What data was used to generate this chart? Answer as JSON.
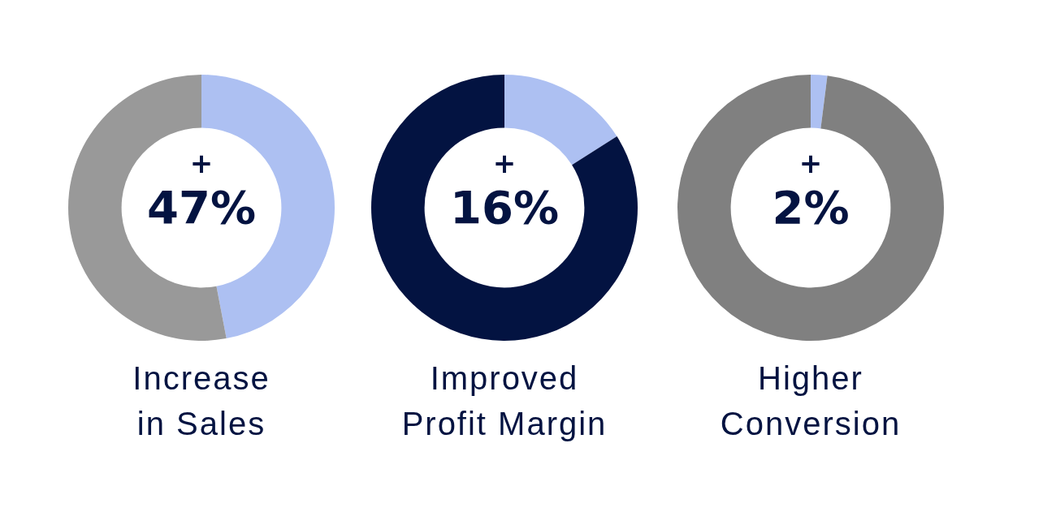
{
  "chart_data": [
    {
      "type": "donut",
      "title": "Increase\nin Sales",
      "categories": [
        null,
        null
      ],
      "values": [
        47,
        53
      ],
      "colors": [
        "#adc0f2",
        "#999999"
      ],
      "value_labels": [
        "47%",
        null
      ],
      "annotations": [
        "+"
      ]
    },
    {
      "type": "donut",
      "title": "Improved\nProfit Margin",
      "categories": [
        null,
        null
      ],
      "values": [
        16,
        84
      ],
      "colors": [
        "#adc0f2",
        "#031341"
      ],
      "value_labels": [
        "16%",
        null
      ],
      "annotations": [
        "+"
      ]
    },
    {
      "type": "donut",
      "title": "Higher\nConversion",
      "categories": [
        null,
        null
      ],
      "values": [
        2,
        98
      ],
      "colors": [
        "#adc0f2",
        "#808080"
      ],
      "value_labels": [
        "2%",
        null
      ],
      "annotations": [
        "+"
      ]
    }
  ]
}
